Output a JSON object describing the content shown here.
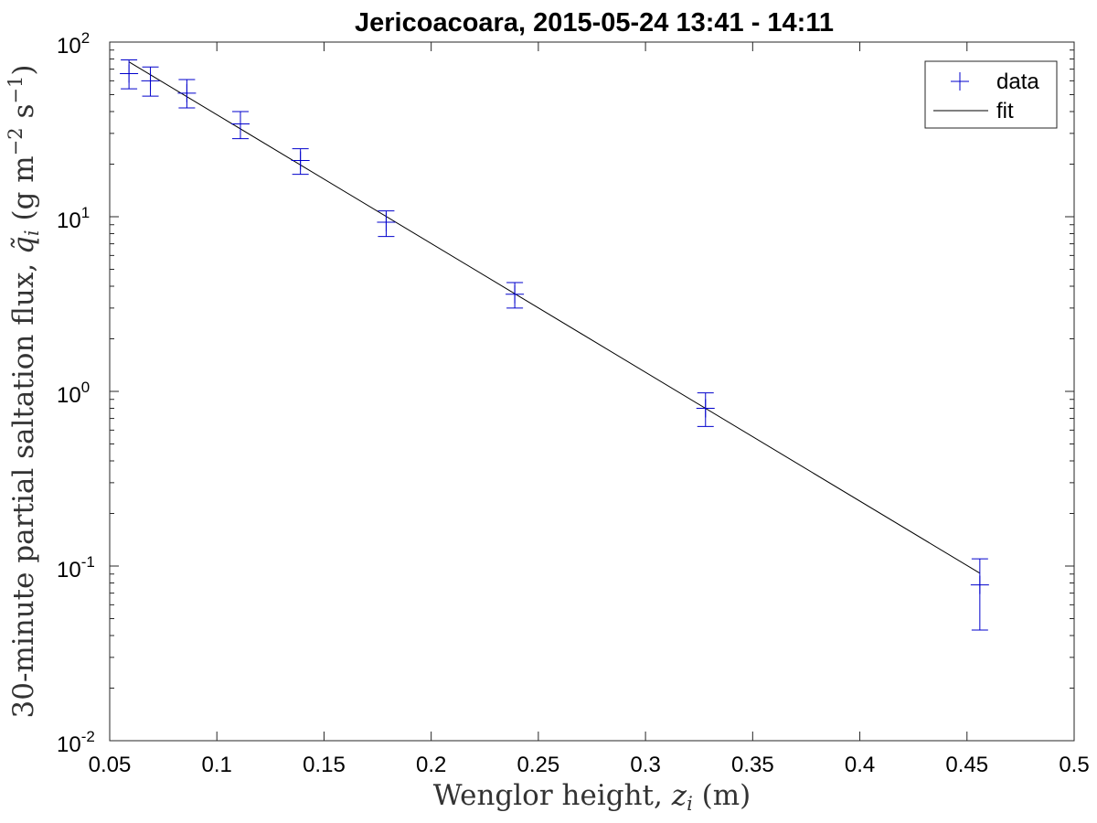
{
  "chart_data": {
    "type": "scatter",
    "title": "Jericoacoara, 2015-05-24 13:41 - 14:11",
    "xlabel": "Wenglor height, z_i (m)",
    "ylabel": "30-minute partial saltation flux, q̃_i (g m^-2 s^-1)",
    "xlim": [
      0.05,
      0.5
    ],
    "ylim": [
      0.01,
      100
    ],
    "yscale": "log",
    "grid": false,
    "legend_position": "top-right",
    "x_ticks": [
      "0.05",
      "0.1",
      "0.15",
      "0.2",
      "0.25",
      "0.3",
      "0.35",
      "0.4",
      "0.45",
      "0.5"
    ],
    "y_ticks": [
      {
        "base": "10",
        "exp": "-2"
      },
      {
        "base": "10",
        "exp": "-1"
      },
      {
        "base": "10",
        "exp": "0"
      },
      {
        "base": "10",
        "exp": "1"
      },
      {
        "base": "10",
        "exp": "2"
      }
    ],
    "series": [
      {
        "name": "data",
        "color": "#0000cc",
        "marker": "plus",
        "points": [
          {
            "x": 0.059,
            "y": 66,
            "err_low": 54,
            "err_high": 79
          },
          {
            "x": 0.069,
            "y": 60,
            "err_low": 49,
            "err_high": 72
          },
          {
            "x": 0.086,
            "y": 51,
            "err_low": 42,
            "err_high": 61
          },
          {
            "x": 0.111,
            "y": 34,
            "err_low": 28,
            "err_high": 40
          },
          {
            "x": 0.139,
            "y": 21,
            "err_low": 17.5,
            "err_high": 24.5
          },
          {
            "x": 0.179,
            "y": 9.3,
            "err_low": 7.7,
            "err_high": 10.8
          },
          {
            "x": 0.239,
            "y": 3.6,
            "err_low": 3.0,
            "err_high": 4.2
          },
          {
            "x": 0.328,
            "y": 0.8,
            "err_low": 0.63,
            "err_high": 0.98
          },
          {
            "x": 0.456,
            "y": 0.078,
            "err_low": 0.043,
            "err_high": 0.11
          }
        ]
      },
      {
        "name": "fit",
        "color": "#000000",
        "line": true,
        "x": [
          0.059,
          0.456
        ],
        "y": [
          77,
          0.091
        ]
      }
    ]
  }
}
